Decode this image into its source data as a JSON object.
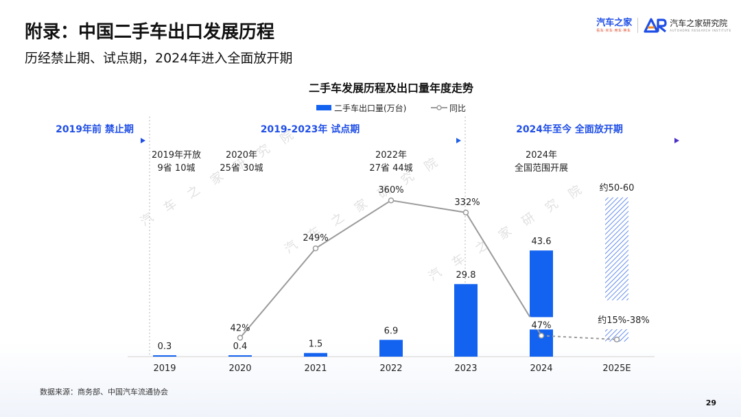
{
  "header": {
    "title": "附录：中国二手车出口发展历程",
    "subtitle": "历经禁止期、试点期，2024年进入全面放开期"
  },
  "brand": {
    "primary_name": "汽车之家",
    "primary_tagline": "看车·买车·用车·换车",
    "secondary_name": "汽车之家研究院",
    "secondary_sub": "AUTOHOME RESEARCH INSTITUTE"
  },
  "chart_data": {
    "type": "bar",
    "title": "二手车发展历程及出口量年度走势",
    "categories": [
      "2019",
      "2020",
      "2021",
      "2022",
      "2023",
      "2024",
      "2025E"
    ],
    "series": [
      {
        "name": "二手车出口量(万台)",
        "type": "bar",
        "values": [
          0.3,
          0.4,
          1.5,
          6.9,
          29.8,
          43.6,
          null
        ],
        "labels": [
          "0.3",
          "0.4",
          "1.5",
          "6.9",
          "29.8",
          "43.6",
          "约50-60"
        ],
        "estimate_range": [
          50,
          60
        ],
        "color": "#1463f0"
      },
      {
        "name": "同比",
        "type": "line",
        "values": [
          null,
          42,
          249,
          360,
          332,
          47,
          null
        ],
        "labels": [
          "",
          "42%",
          "249%",
          "360%",
          "332%",
          "47%",
          "约15%-38%"
        ],
        "estimate_range": [
          15,
          38
        ],
        "unit": "%",
        "color": "#9a9a9a"
      }
    ],
    "legend_placement": "top-center",
    "phases": [
      {
        "label": "2019年前 禁止期",
        "start": "2019",
        "end": "2019",
        "color": "#1f4ee6"
      },
      {
        "label": "2019-2023年 试点期",
        "start": "2019",
        "end": "2023",
        "color": "#1f4ee6"
      },
      {
        "label": "2024年至今 全面放开期",
        "start": "2024",
        "end": "2025E",
        "color": "#1f4ee6"
      }
    ],
    "annotations": [
      {
        "category": "2019",
        "lines": [
          "2019年开放",
          "9省 10城"
        ]
      },
      {
        "category": "2020",
        "lines": [
          "2020年",
          "25省 30城"
        ]
      },
      {
        "category": "2022",
        "lines": [
          "2022年",
          "27省 44城"
        ]
      },
      {
        "category": "2024",
        "lines": [
          "2024年",
          "全国范围开展"
        ]
      }
    ],
    "grid": false,
    "watermark": "汽车之家研究院"
  },
  "footer": {
    "source": "数据来源：商务部、中国汽车流通协会",
    "page_number": "29"
  },
  "colors": {
    "accent": "#1f4ee6",
    "bar": "#1463f0",
    "line": "#9a9a9a"
  }
}
